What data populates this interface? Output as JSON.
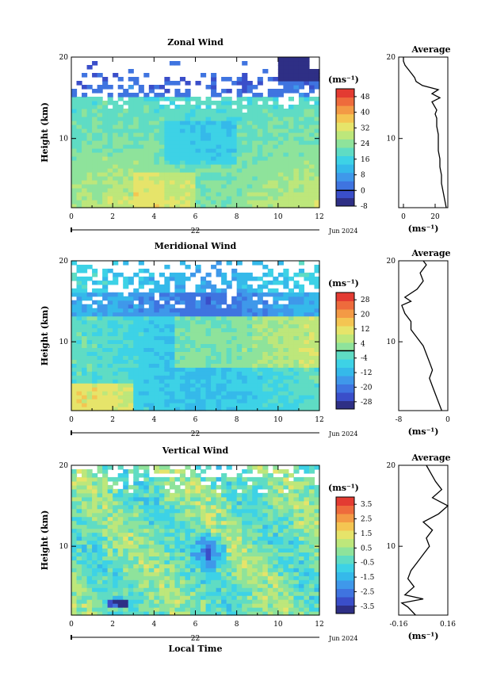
{
  "colors": {
    "scale": [
      "#2e2f85",
      "#3a4ec9",
      "#3f74e0",
      "#3f98ea",
      "#35b9ea",
      "#3dd2e6",
      "#5fdcc4",
      "#8ee39b",
      "#bde77b",
      "#e6e46a",
      "#f4c552",
      "#f39a45",
      "#ee6b3c",
      "#e33b32"
    ],
    "axis": "#000000"
  },
  "chart_data": [
    {
      "type": "heatmap",
      "id": "zonal",
      "title": "Zonal Wind",
      "ylabel": "Height (km)",
      "xlim": [
        0,
        12
      ],
      "ylim": [
        1.5,
        20
      ],
      "x_ticks": [
        "0",
        "2",
        "4",
        "6",
        "8",
        "10",
        "12"
      ],
      "y_ticks": [
        "10",
        "20"
      ],
      "date_label": "22",
      "month_label": "Jun 2024",
      "colorbar": {
        "unit": "(ms⁻¹)",
        "labels": [
          "-8",
          "0",
          "8",
          "16",
          "24",
          "32",
          "40",
          "48"
        ],
        "min": -8,
        "max": 52,
        "zero_line": 0
      },
      "average": {
        "title": "Average",
        "xlim": [
          -3,
          28
        ],
        "x_ticks": [
          "0",
          "20"
        ],
        "xlabel": "(ms⁻¹)",
        "profile": [
          [
            27,
            1.5
          ],
          [
            26,
            2.5
          ],
          [
            25,
            3.5
          ],
          [
            24,
            4.5
          ],
          [
            24,
            5.5
          ],
          [
            23,
            6.5
          ],
          [
            23,
            7.5
          ],
          [
            22,
            8.5
          ],
          [
            22,
            9.5
          ],
          [
            22,
            10.5
          ],
          [
            21,
            11.5
          ],
          [
            21,
            12.5
          ],
          [
            20,
            13
          ],
          [
            21,
            13.5
          ],
          [
            18,
            14.5
          ],
          [
            23,
            15
          ],
          [
            18,
            15.5
          ],
          [
            22,
            16
          ],
          [
            12,
            16.5
          ],
          [
            8,
            17
          ],
          [
            7,
            17.5
          ],
          [
            5,
            18
          ],
          [
            3,
            18.5
          ],
          [
            1,
            19
          ],
          [
            0,
            19.5
          ],
          [
            0,
            20
          ]
        ]
      }
    },
    {
      "type": "heatmap",
      "id": "meridional",
      "title": "Meridional Wind",
      "ylabel": "Height (km)",
      "xlim": [
        0,
        12
      ],
      "ylim": [
        1.5,
        20
      ],
      "x_ticks": [
        "0",
        "2",
        "4",
        "6",
        "8",
        "10",
        "12"
      ],
      "y_ticks": [
        "10",
        "20"
      ],
      "date_label": "22",
      "month_label": "Jun 2024",
      "colorbar": {
        "unit": "(ms⁻¹)",
        "labels": [
          "-28",
          "-20",
          "-12",
          "-4",
          "4",
          "12",
          "20",
          "28"
        ],
        "min": -32,
        "max": 32,
        "zero_line": 0
      },
      "average": {
        "title": "Average",
        "xlim": [
          -8,
          0
        ],
        "x_ticks": [
          "-8",
          "0"
        ],
        "xlabel": "(ms⁻¹)",
        "profile": [
          [
            -1,
            1.5
          ],
          [
            -1.5,
            2.5
          ],
          [
            -2,
            3.5
          ],
          [
            -2.5,
            4.5
          ],
          [
            -3,
            5.5
          ],
          [
            -2.5,
            6.5
          ],
          [
            -3,
            7.5
          ],
          [
            -3.5,
            8.5
          ],
          [
            -4,
            9.5
          ],
          [
            -5,
            10.5
          ],
          [
            -6,
            11.5
          ],
          [
            -6,
            12.5
          ],
          [
            -7,
            13.5
          ],
          [
            -7.5,
            14.5
          ],
          [
            -6,
            15
          ],
          [
            -7,
            15.5
          ],
          [
            -5,
            16.5
          ],
          [
            -4,
            17.5
          ],
          [
            -4.5,
            18.5
          ],
          [
            -3.5,
            19.5
          ],
          [
            -4,
            20
          ]
        ]
      }
    },
    {
      "type": "heatmap",
      "id": "vertical",
      "title": "Vertical Wind",
      "ylabel": "Height (km)",
      "xlabel": "Local Time",
      "xlim": [
        0,
        12
      ],
      "ylim": [
        1.5,
        20
      ],
      "x_ticks": [
        "0",
        "2",
        "4",
        "6",
        "8",
        "10",
        "12"
      ],
      "y_ticks": [
        "10",
        "20"
      ],
      "date_label": "22",
      "month_label": "Jun 2024",
      "colorbar": {
        "unit": "(ms⁻¹)",
        "labels": [
          "-3.5",
          "-2.5",
          "-1.5",
          "-0.5",
          "0.5",
          "1.5",
          "2.5",
          "3.5"
        ],
        "min": -4,
        "max": 4,
        "zero_line": null
      },
      "average": {
        "title": "Average",
        "xlim": [
          -0.16,
          0.16
        ],
        "x_ticks": [
          "-0.16",
          "0.16"
        ],
        "xlabel": "(ms⁻¹)",
        "profile": [
          [
            -0.05,
            1.5
          ],
          [
            -0.1,
            2.5
          ],
          [
            -0.14,
            3
          ],
          [
            0,
            3.5
          ],
          [
            -0.12,
            4
          ],
          [
            -0.06,
            5
          ],
          [
            -0.1,
            6
          ],
          [
            -0.08,
            7
          ],
          [
            -0.04,
            8
          ],
          [
            0,
            9
          ],
          [
            0.04,
            10
          ],
          [
            0.02,
            11
          ],
          [
            0.06,
            12
          ],
          [
            0,
            13
          ],
          [
            0.1,
            14
          ],
          [
            0.16,
            15
          ],
          [
            0.06,
            16
          ],
          [
            0.12,
            17
          ],
          [
            0.08,
            18
          ],
          [
            0.05,
            19
          ],
          [
            0.02,
            20
          ]
        ]
      }
    }
  ]
}
